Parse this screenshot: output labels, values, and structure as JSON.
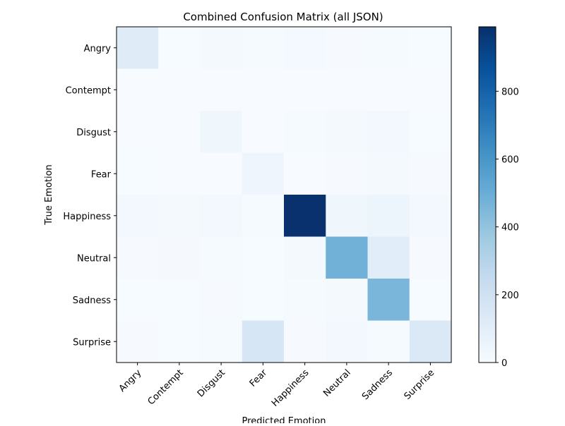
{
  "chart_data": {
    "type": "heatmap",
    "title": "Combined Confusion Matrix (all JSON)",
    "xlabel": "Predicted Emotion",
    "ylabel": "True Emotion",
    "x_categories": [
      "Angry",
      "Contempt",
      "Disgust",
      "Fear",
      "Happiness",
      "Neutral",
      "Sadness",
      "Surprise"
    ],
    "y_categories": [
      "Angry",
      "Contempt",
      "Disgust",
      "Fear",
      "Happiness",
      "Neutral",
      "Sadness",
      "Surprise"
    ],
    "values": [
      [
        120,
        3,
        15,
        8,
        18,
        5,
        10,
        3
      ],
      [
        0,
        0,
        0,
        0,
        0,
        0,
        0,
        0
      ],
      [
        2,
        0,
        40,
        0,
        10,
        15,
        20,
        3
      ],
      [
        3,
        0,
        0,
        45,
        2,
        5,
        15,
        5
      ],
      [
        20,
        15,
        25,
        10,
        985,
        40,
        50,
        25
      ],
      [
        6,
        12,
        8,
        3,
        15,
        480,
        110,
        5
      ],
      [
        3,
        3,
        6,
        3,
        10,
        15,
        460,
        3
      ],
      [
        5,
        3,
        10,
        160,
        5,
        25,
        10,
        140
      ]
    ],
    "colorbar": {
      "colormap": "Blues",
      "range": [
        0,
        990
      ],
      "ticks": [
        0,
        200,
        400,
        600,
        800
      ]
    },
    "grid": false
  }
}
